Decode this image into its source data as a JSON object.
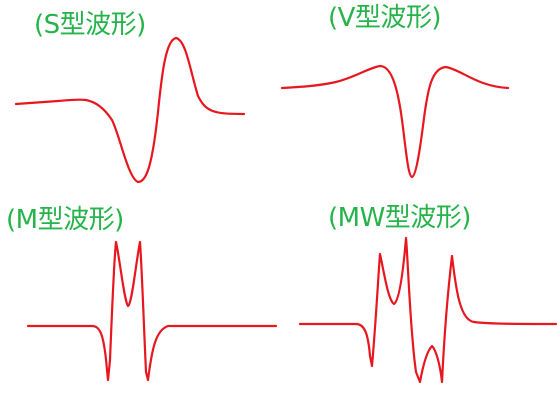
{
  "colors": {
    "title": "#25b34a",
    "waveform": "#e8171f",
    "background": "#ffffff"
  },
  "panels": [
    {
      "key": "s",
      "title": "(S型波形)"
    },
    {
      "key": "v",
      "title": "(V型波形)"
    },
    {
      "key": "m",
      "title": "(M型波形)"
    },
    {
      "key": "mw",
      "title": "(MW型波形)"
    }
  ]
}
